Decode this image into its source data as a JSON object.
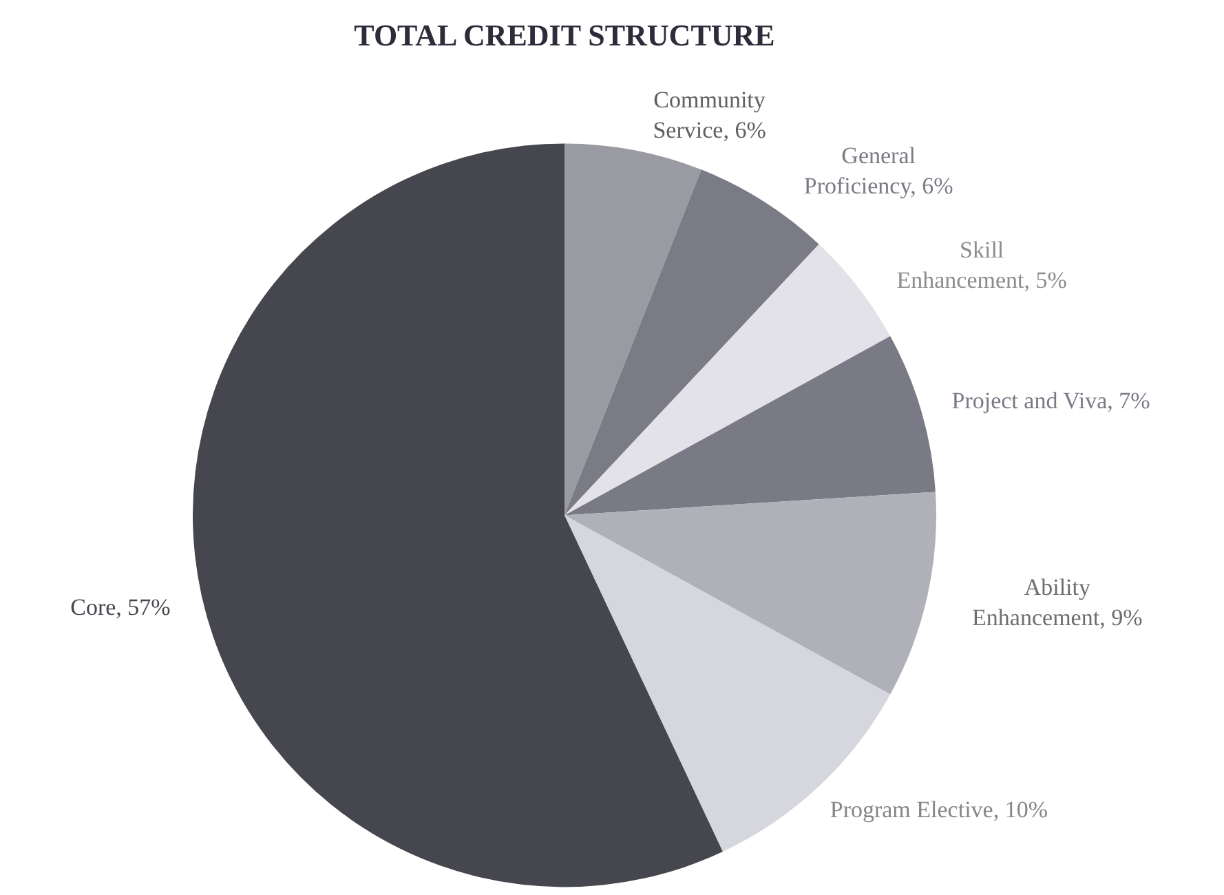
{
  "chart_data": {
    "type": "pie",
    "title": "TOTAL CREDIT STRUCTURE",
    "categories": [
      "Community Service",
      "General Proficiency",
      "Skill Enhancement",
      "Project and Viva",
      "Ability Enhancement",
      "Program Elective",
      "Core"
    ],
    "values": [
      6,
      6,
      5,
      7,
      9,
      10,
      57
    ],
    "value_labels": [
      "6%",
      "6%",
      "5%",
      "7%",
      "9%",
      "10%",
      "57%"
    ],
    "colors": [
      "#9a9aa2",
      "#7b7b86",
      "#e2e2e8",
      "#7a7a86",
      "#b0b0b8",
      "#d6d6de",
      "#46464f"
    ],
    "legend": false
  }
}
